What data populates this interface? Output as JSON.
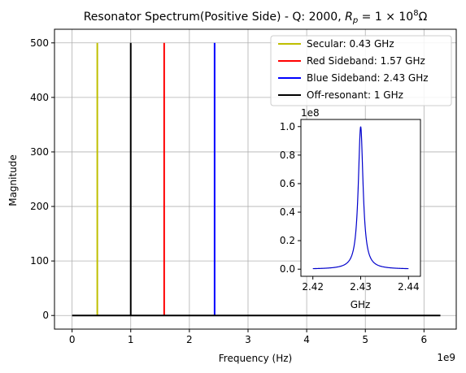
{
  "chart_data": [
    {
      "type": "line",
      "title_prefix": "Resonator Spectrum(Positive Side) - Q: 2000, ",
      "title_math": "R",
      "title_sub": "p",
      "title_eq": " = 1 × 10",
      "title_exp": "8",
      "title_unit": "Ω",
      "xlabel": "Frequency (Hz)",
      "ylabel": "Magnitude",
      "x_offset_label": "1e9",
      "xlim": [
        -0.3,
        6.55
      ],
      "ylim": [
        -25,
        525
      ],
      "x_ticks": [
        0,
        1,
        2,
        3,
        4,
        5,
        6
      ],
      "x_tick_labels": [
        "0",
        "1",
        "2",
        "3",
        "4",
        "5",
        "6"
      ],
      "y_ticks": [
        0,
        100,
        200,
        300,
        400,
        500
      ],
      "y_tick_labels": [
        "0",
        "100",
        "200",
        "300",
        "400",
        "500"
      ],
      "grid": true,
      "legend_position": "top-right",
      "baseline": {
        "x": [
          0,
          6.28
        ],
        "y": 0,
        "color": "#000000"
      },
      "series": [
        {
          "name": "Secular: 0.43 GHz",
          "x": 0.43,
          "value": 500,
          "color": "#bfbf00"
        },
        {
          "name": "Red Sideband: 1.57 GHz",
          "x": 1.57,
          "value": 500,
          "color": "#ff0000"
        },
        {
          "name": "Blue Sideband: 2.43 GHz",
          "x": 2.43,
          "value": 500,
          "color": "#0000ff"
        },
        {
          "name": "Off-resonant: 1 GHz",
          "x": 1.0,
          "value": 500,
          "color": "#000000"
        }
      ]
    },
    {
      "type": "line",
      "xlabel": "GHz",
      "y_offset_label": "1e8",
      "xlim": [
        2.4175,
        2.4425
      ],
      "ylim": [
        -0.05,
        1.05
      ],
      "x_ticks": [
        2.42,
        2.43,
        2.44
      ],
      "x_tick_labels": [
        "2.42",
        "2.43",
        "2.44"
      ],
      "y_ticks": [
        0.0,
        0.2,
        0.4,
        0.6,
        0.8,
        1.0
      ],
      "y_tick_labels": [
        "0.0",
        "0.2",
        "0.4",
        "0.6",
        "0.8",
        "1.0"
      ],
      "grid": false,
      "curve": {
        "type": "lorentzian",
        "center": 2.43,
        "q": 2000,
        "peak": 1.0,
        "x_range": [
          2.42,
          2.44
        ],
        "color": "#0000cc"
      }
    }
  ]
}
